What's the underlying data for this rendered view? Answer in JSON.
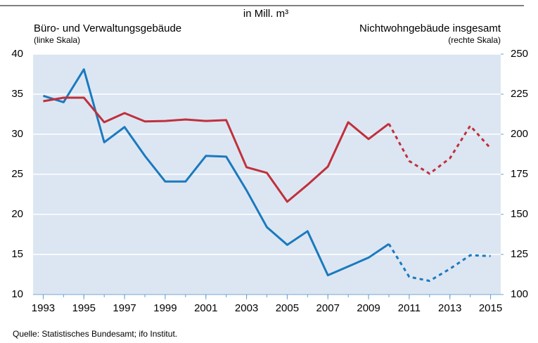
{
  "chart_data": {
    "type": "line",
    "unit": "in Mill. m³",
    "source": "Quelle: Statistisches Bundesamt; ifo Institut.",
    "x": [
      1993,
      1994,
      1995,
      1996,
      1997,
      1998,
      1999,
      2000,
      2001,
      2002,
      2003,
      2004,
      2005,
      2006,
      2007,
      2008,
      2009,
      2010,
      2011,
      2012,
      2013,
      2014,
      2015
    ],
    "xlim": [
      1992.5,
      2015.5
    ],
    "xticks": [
      1993,
      1995,
      1997,
      1999,
      2001,
      2003,
      2005,
      2007,
      2009,
      2011,
      2013,
      2015
    ],
    "ylim": [
      10,
      40
    ],
    "yticks": [
      10,
      15,
      20,
      25,
      30,
      35,
      40
    ],
    "y2lim": [
      100,
      250
    ],
    "y2ticks": [
      100,
      125,
      150,
      175,
      200,
      225,
      250
    ],
    "grid": true,
    "background": "#dce6f2",
    "dashed_after": 2010,
    "series": [
      {
        "name": "Büro- und Verwaltungsgebäude",
        "scale_note": "(linke Skala)",
        "color": "#1a7abf",
        "values": [
          34.8,
          34.0,
          38.1,
          29.0,
          30.9,
          27.3,
          24.1,
          24.1,
          27.3,
          27.2,
          23.0,
          18.4,
          16.2,
          17.9,
          12.4,
          13.5,
          14.6,
          16.3,
          12.2,
          11.7,
          13.2,
          14.9,
          14.8
        ]
      },
      {
        "name": "Nichtwohngebäude insgesamt",
        "scale_note": "(rechte Skala)",
        "color": "#c0303c",
        "axis": "y2",
        "values": [
          220.6,
          222.8,
          222.8,
          207.5,
          213.2,
          208.0,
          208.3,
          209.2,
          208.3,
          208.8,
          179.4,
          175.9,
          157.9,
          168.5,
          179.8,
          207.5,
          197.0,
          206.6,
          183.3,
          175.4,
          185.0,
          205.3,
          191.2
        ]
      }
    ]
  }
}
